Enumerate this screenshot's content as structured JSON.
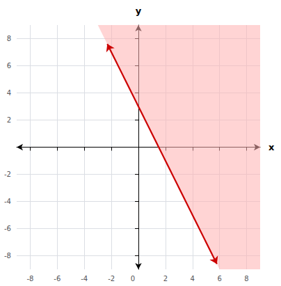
{
  "chart_data": {
    "type": "line",
    "xlabel": "x",
    "ylabel": "y",
    "xlim": [
      -9,
      9
    ],
    "ylim": [
      -9,
      9
    ],
    "xticks": [
      -8,
      -6,
      -4,
      -2,
      0,
      2,
      4,
      6,
      8
    ],
    "yticks": [
      -8,
      -6,
      -4,
      -2,
      0,
      2,
      4,
      6,
      8
    ],
    "grid": true,
    "x": [
      -2.3,
      5.8
    ],
    "values": [
      7.6,
      -8.6
    ],
    "color": "#cc0000",
    "shaded_region": {
      "x": [
        -3,
        9,
        9,
        6
      ],
      "y": [
        9,
        9,
        -9,
        -9
      ],
      "color": "#ffb0b0"
    }
  }
}
